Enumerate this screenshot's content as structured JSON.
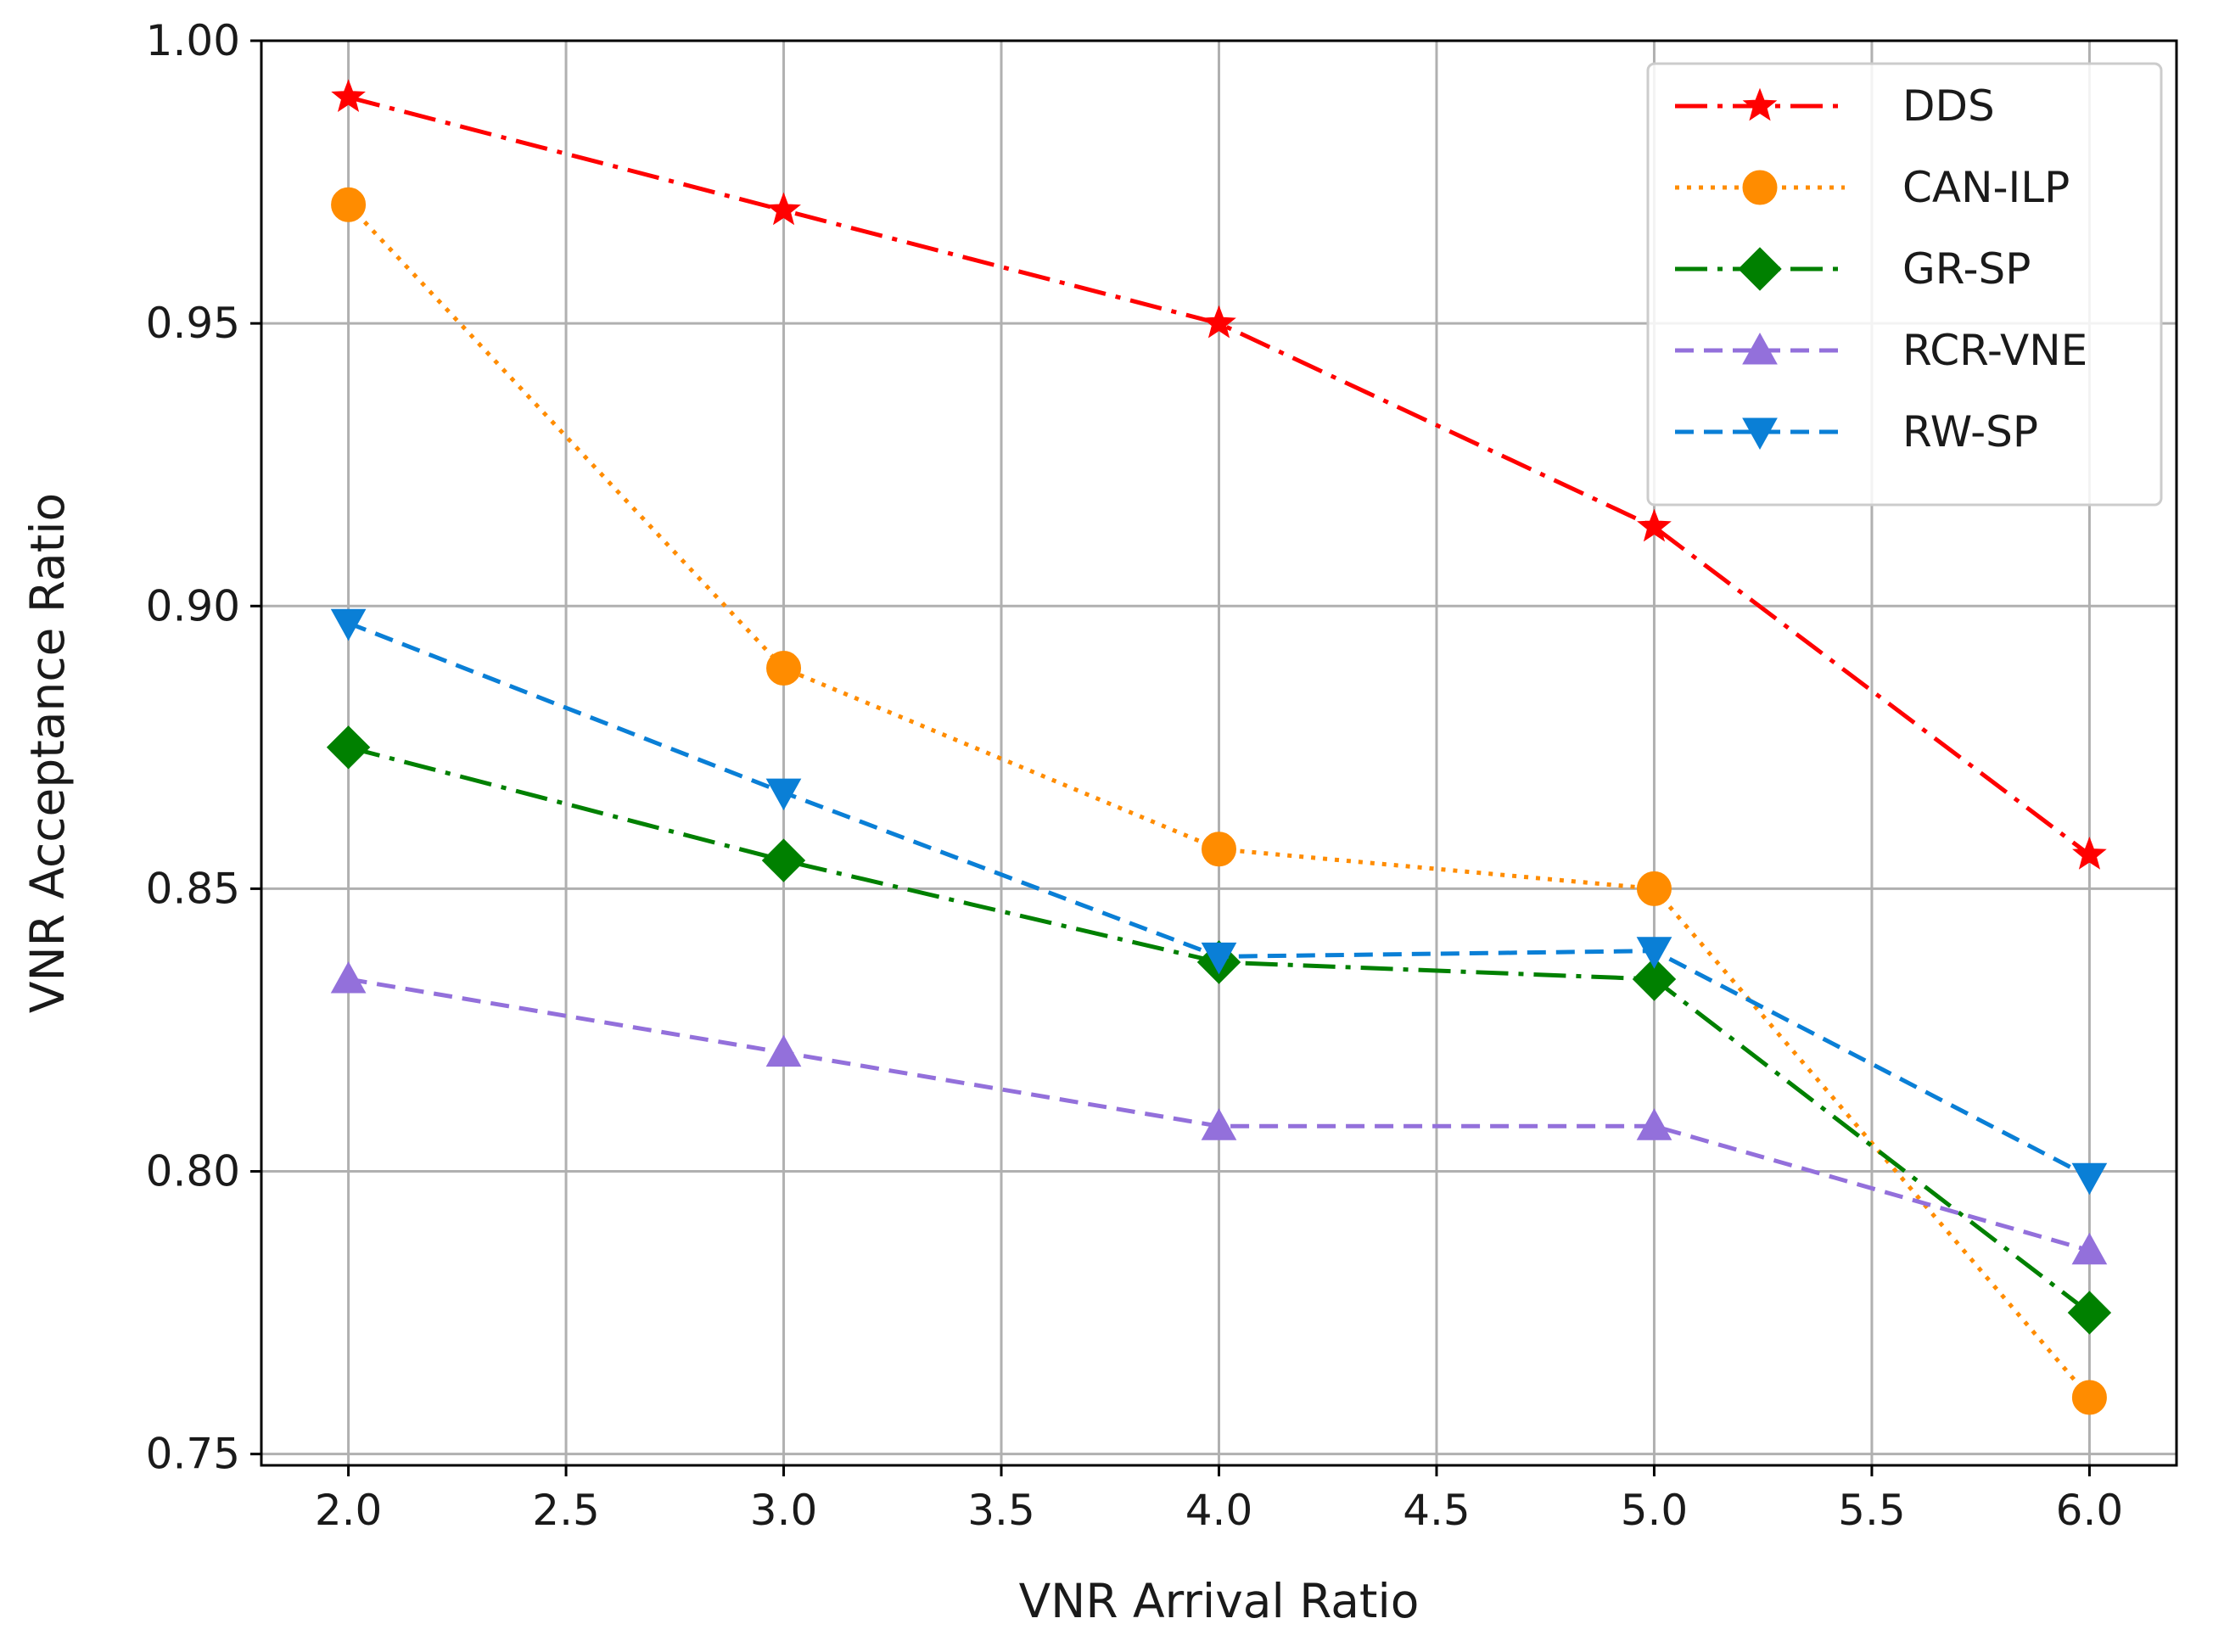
{
  "chart_data": {
    "type": "line",
    "title": "",
    "xlabel": "VNR Arrival Ratio",
    "ylabel": "VNR Acceptance Ratio",
    "xlim": [
      1.8,
      6.2
    ],
    "ylim": [
      0.748,
      1.0
    ],
    "grid": true,
    "legend_position": "top-right",
    "x_ticks": [
      2.0,
      2.5,
      3.0,
      3.5,
      4.0,
      4.5,
      5.0,
      5.5,
      6.0
    ],
    "x_tick_labels": [
      "2.0",
      "2.5",
      "3.0",
      "3.5",
      "4.0",
      "4.5",
      "5.0",
      "5.5",
      "6.0"
    ],
    "y_ticks": [
      0.75,
      0.8,
      0.85,
      0.9,
      0.95,
      1.0
    ],
    "y_tick_labels": [
      "0.75",
      "0.80",
      "0.85",
      "0.90",
      "0.95",
      "1.00"
    ],
    "x": [
      2.0,
      3.0,
      4.0,
      5.0,
      6.0
    ],
    "series": [
      {
        "name": "DDS",
        "values": [
          0.99,
          0.97,
          0.95,
          0.914,
          0.856
        ],
        "color": "#ff0000",
        "dash": "dashdot",
        "marker": "star"
      },
      {
        "name": "CAN-ILP",
        "values": [
          0.971,
          0.889,
          0.857,
          0.85,
          0.76
        ],
        "color": "#ff8c00",
        "dash": "dotted",
        "marker": "circle"
      },
      {
        "name": "GR-SP",
        "values": [
          0.875,
          0.855,
          0.837,
          0.834,
          0.775
        ],
        "color": "#008000",
        "dash": "dashdot",
        "marker": "diamond"
      },
      {
        "name": "RCR-VNE",
        "values": [
          0.834,
          0.821,
          0.808,
          0.808,
          0.786
        ],
        "color": "#9370db",
        "dash": "dashed",
        "marker": "triangle-up"
      },
      {
        "name": "RW-SP",
        "values": [
          0.897,
          0.867,
          0.838,
          0.839,
          0.799
        ],
        "color": "#0a7fd6",
        "dash": "dashed",
        "marker": "triangle-down"
      }
    ]
  }
}
